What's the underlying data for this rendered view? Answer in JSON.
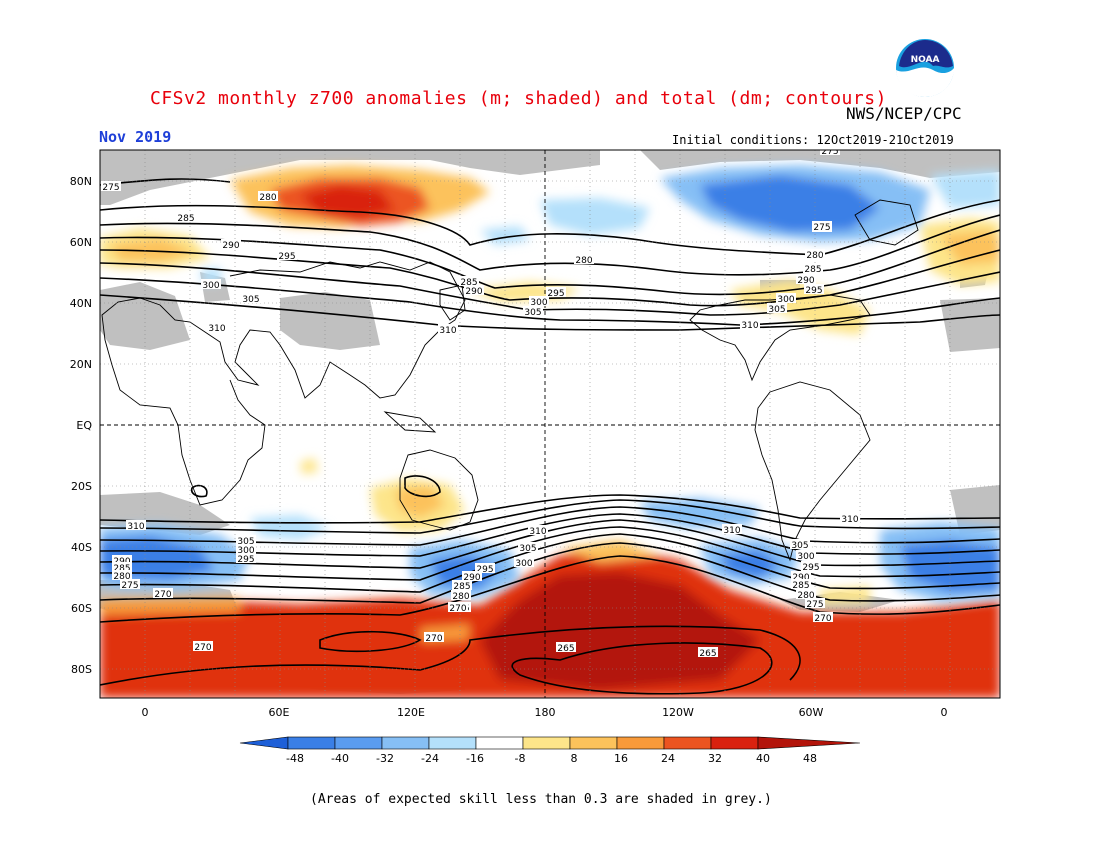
{
  "title": "CFSv2 monthly z700 anomalies (m; shaded) and total (dm; contours)",
  "agency": "NWS/NCEP/CPC",
  "valid_month": "Nov 2019",
  "initial_conditions": "Initial conditions: 12Oct2019-21Oct2019",
  "footnote": "(Areas of expected skill less than 0.3 are shaded in grey.)",
  "logo_text": "NOAA",
  "map": {
    "lat_labels": [
      "80N",
      "60N",
      "40N",
      "20N",
      "EQ",
      "20S",
      "40S",
      "60S",
      "80S"
    ],
    "lon_labels": [
      "0",
      "60E",
      "120E",
      "180",
      "120W",
      "60W",
      "0"
    ]
  },
  "colorbar": {
    "ticks": [
      "-48",
      "-40",
      "-32",
      "-24",
      "-16",
      "-8",
      "8",
      "16",
      "24",
      "32",
      "40",
      "48"
    ],
    "colors": [
      "#1d5fd8",
      "#3a7fe6",
      "#5a9cf0",
      "#86bff5",
      "#b4e0fb",
      "#ffffff",
      "#fde58a",
      "#fcc25b",
      "#f89a3a",
      "#ec5420",
      "#d9220f",
      "#b3140a"
    ]
  },
  "contour_labels": [
    "275",
    "280",
    "285",
    "290",
    "295",
    "300",
    "305",
    "310",
    "310",
    "285",
    "290",
    "300",
    "295",
    "305",
    "310",
    "280",
    "280",
    "285",
    "290",
    "295",
    "300",
    "305",
    "310",
    "275",
    "275",
    "310",
    "305",
    "300",
    "295",
    "290",
    "285",
    "280",
    "275",
    "270",
    "310",
    "305",
    "300",
    "295",
    "290",
    "285",
    "280",
    "275",
    "270",
    "270",
    "270",
    "265",
    "265",
    "310",
    "305",
    "300",
    "295",
    "290",
    "285",
    "280",
    "275",
    "270",
    "310"
  ]
}
